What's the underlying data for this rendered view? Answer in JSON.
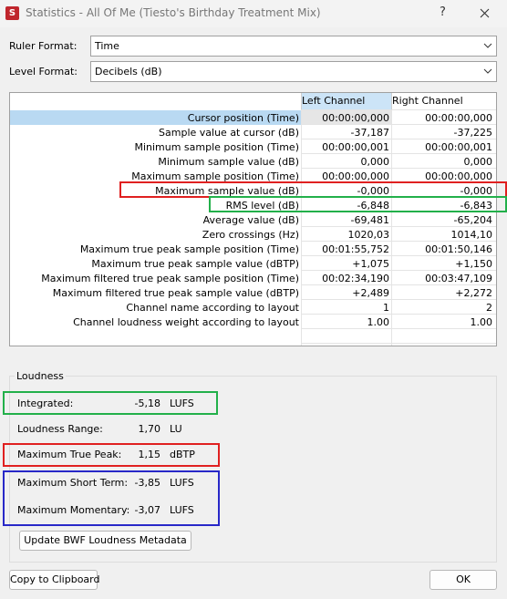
{
  "header": {
    "title": "Statistics - All Of Me (Tiesto's Birthday Treatment Mix)",
    "help": "?"
  },
  "form": {
    "ruler_label": "Ruler Format:",
    "ruler_value": "Time",
    "level_label": "Level Format:",
    "level_value": "Decibels (dB)"
  },
  "table": {
    "columns": [
      "Left Channel",
      "Right Channel"
    ],
    "rows": [
      [
        "Cursor position (Time)",
        "00:00:00,000",
        "00:00:00,000"
      ],
      [
        "Sample value at cursor (dB)",
        "-37,187",
        "-37,225"
      ],
      [
        "Minimum sample position (Time)",
        "00:00:00,001",
        "00:00:00,001"
      ],
      [
        "Minimum sample value (dB)",
        "0,000",
        "0,000"
      ],
      [
        "Maximum sample position (Time)",
        "00:00:00,000",
        "00:00:00,000"
      ],
      [
        "Maximum sample value (dB)",
        "-0,000",
        "-0,000"
      ],
      [
        "RMS level (dB)",
        "-6,848",
        "-6,843"
      ],
      [
        "Average value (dB)",
        "-69,481",
        "-65,204"
      ],
      [
        "Zero crossings (Hz)",
        "1020,03",
        "1014,10"
      ],
      [
        "Maximum true peak sample position (Time)",
        "00:01:55,752",
        "00:01:50,146"
      ],
      [
        "Maximum true peak sample value (dBTP)",
        "+1,075",
        "+1,150"
      ],
      [
        "Maximum filtered true peak sample position (Time)",
        "00:02:34,190",
        "00:03:47,109"
      ],
      [
        "Maximum filtered true peak sample value (dBTP)",
        "+2,489",
        "+2,272"
      ],
      [
        "Channel name according to layout",
        "1",
        "2"
      ],
      [
        "Channel loudness weight according to layout",
        "1.00",
        "1.00"
      ]
    ]
  },
  "loudness": {
    "title": "Loudness",
    "items": [
      {
        "label": "Integrated:",
        "value": "-5,18",
        "unit": "LUFS"
      },
      {
        "label": "Loudness Range:",
        "value": "1,70",
        "unit": "LU"
      },
      {
        "label": "Maximum True Peak:",
        "value": "1,15",
        "unit": "dBTP"
      },
      {
        "label": "Maximum Short Term:",
        "value": "-3,85",
        "unit": "LUFS"
      },
      {
        "label": "Maximum Momentary:",
        "value": "-3,07",
        "unit": "LUFS"
      }
    ],
    "update_button": "Update BWF Loudness Metadata"
  },
  "footer": {
    "copy_button": "Copy to Clipboard",
    "ok_button": "OK"
  }
}
